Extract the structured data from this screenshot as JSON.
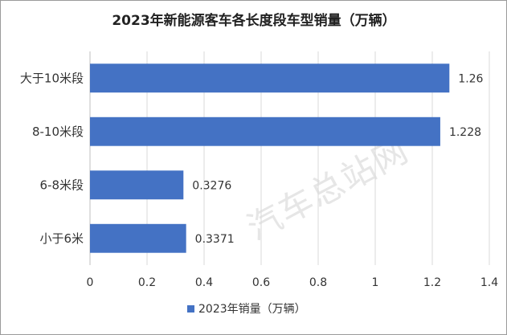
{
  "chart_data": {
    "type": "bar",
    "orientation": "horizontal",
    "title": "2023年新能源客车各长度段车型销量（万辆）",
    "categories": [
      "大于10米段",
      "8-10米段",
      "6-8米段",
      "小于6米"
    ],
    "series": [
      {
        "name": "2023年销量（万辆）",
        "values": [
          1.26,
          1.228,
          0.3276,
          0.3371
        ],
        "value_labels": [
          "1.26",
          "1.228",
          "0.3276",
          "0.3371"
        ],
        "color": "#4472c4"
      }
    ],
    "xlim": [
      0,
      1.4
    ],
    "xticks": [
      "0",
      "0.2",
      "0.4",
      "0.6",
      "0.8",
      "1",
      "1.2",
      "1.4"
    ],
    "grid": "vertical",
    "legend_position": "bottom"
  },
  "watermark": "汽车总站网"
}
